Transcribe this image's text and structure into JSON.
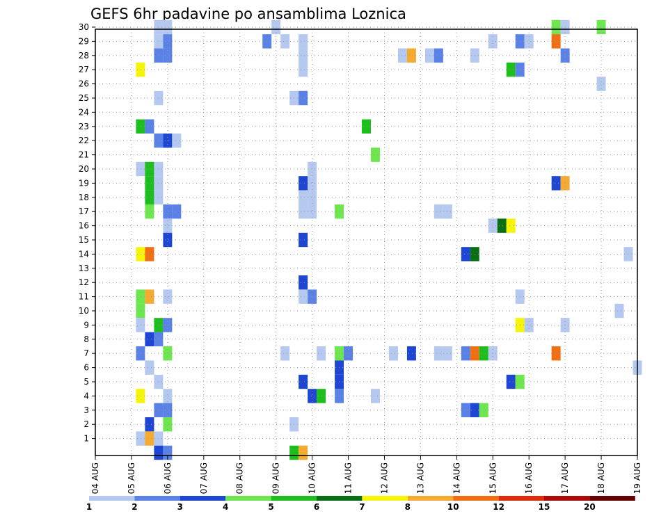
{
  "chart_data": {
    "type": "heatmap",
    "title": "GEFS 6hr padavine po ansamblima Loznica",
    "xlabel": "",
    "ylabel": "",
    "x_tick_labels": [
      "04 AUG",
      "05 AUG",
      "06 AUG",
      "07 AUG",
      "08 AUG",
      "09 AUG",
      "10 AUG",
      "11 AUG",
      "12 AUG",
      "13 AUG",
      "14 AUG",
      "15 AUG",
      "16 AUG",
      "17 AUG",
      "18 AUG",
      "19 AUG"
    ],
    "y_tick_labels": [
      "1",
      "2",
      "3",
      "4",
      "5",
      "6",
      "7",
      "8",
      "9",
      "10",
      "11",
      "12",
      "13",
      "14",
      "15",
      "16",
      "17",
      "18",
      "19",
      "20",
      "21",
      "22",
      "23",
      "24",
      "25",
      "26",
      "27",
      "28",
      "29",
      "30"
    ],
    "x_axis": "forecast time, 6-hour steps from 04 AUG 00Z (4 steps per day)",
    "y_axis": "ensemble member",
    "xlim_steps": [
      0,
      60
    ],
    "ylim_members": [
      0,
      30
    ],
    "grid": true,
    "color_bins": [
      {
        "from": 1,
        "to": 2,
        "color": "#b4c8f0"
      },
      {
        "from": 2,
        "to": 3,
        "color": "#5a82e6"
      },
      {
        "from": 3,
        "to": 4,
        "color": "#1e46d2"
      },
      {
        "from": 4,
        "to": 5,
        "color": "#6ee650"
      },
      {
        "from": 5,
        "to": 6,
        "color": "#1ebe1e"
      },
      {
        "from": 6,
        "to": 7,
        "color": "#0a6e14"
      },
      {
        "from": 7,
        "to": 8,
        "color": "#f5f50a"
      },
      {
        "from": 8,
        "to": 10,
        "color": "#f5aa32"
      },
      {
        "from": 10,
        "to": 12,
        "color": "#f06e14"
      },
      {
        "from": 12,
        "to": 15,
        "color": "#dc2d0a"
      },
      {
        "from": 15,
        "to": 20,
        "color": "#aa0a0a"
      },
      {
        "from": 20,
        "to": null,
        "color": "#640000"
      }
    ],
    "legend_labels": [
      "1",
      "2",
      "3",
      "4",
      "5",
      "6",
      "7",
      "8",
      "10",
      "12",
      "15",
      "20"
    ],
    "cells": [
      {
        "step": 7,
        "member": 30,
        "value": 1.5
      },
      {
        "step": 8,
        "member": 30,
        "value": 1.5
      },
      {
        "step": 20,
        "member": 30,
        "value": 1.5
      },
      {
        "step": 51,
        "member": 30,
        "value": 4.5
      },
      {
        "step": 52,
        "member": 30,
        "value": 1.5
      },
      {
        "step": 56,
        "member": 30,
        "value": 4.5
      },
      {
        "step": 7,
        "member": 29,
        "value": 1.5
      },
      {
        "step": 8,
        "member": 29,
        "value": 2.5
      },
      {
        "step": 19,
        "member": 29,
        "value": 2.5
      },
      {
        "step": 21,
        "member": 29,
        "value": 1.5
      },
      {
        "step": 23,
        "member": 29,
        "value": 1.5
      },
      {
        "step": 44,
        "member": 29,
        "value": 1.5
      },
      {
        "step": 47,
        "member": 29,
        "value": 2.5
      },
      {
        "step": 48,
        "member": 29,
        "value": 1.5
      },
      {
        "step": 51,
        "member": 29,
        "value": 11
      },
      {
        "step": 7,
        "member": 28,
        "value": 2.5
      },
      {
        "step": 8,
        "member": 28,
        "value": 2.5
      },
      {
        "step": 23,
        "member": 28,
        "value": 1.5
      },
      {
        "step": 34,
        "member": 28,
        "value": 1.5
      },
      {
        "step": 35,
        "member": 28,
        "value": 9
      },
      {
        "step": 37,
        "member": 28,
        "value": 1.5
      },
      {
        "step": 38,
        "member": 28,
        "value": 2.5
      },
      {
        "step": 42,
        "member": 28,
        "value": 1.5
      },
      {
        "step": 52,
        "member": 28,
        "value": 2.5
      },
      {
        "step": 5,
        "member": 27,
        "value": 7.5
      },
      {
        "step": 23,
        "member": 27,
        "value": 1.5
      },
      {
        "step": 46,
        "member": 27,
        "value": 5.5
      },
      {
        "step": 47,
        "member": 27,
        "value": 2.5
      },
      {
        "step": 56,
        "member": 26,
        "value": 1.5
      },
      {
        "step": 7,
        "member": 25,
        "value": 1.5
      },
      {
        "step": 22,
        "member": 25,
        "value": 1.5
      },
      {
        "step": 23,
        "member": 25,
        "value": 2.5
      },
      {
        "step": 5,
        "member": 23,
        "value": 5.5
      },
      {
        "step": 6,
        "member": 23,
        "value": 2.5
      },
      {
        "step": 30,
        "member": 23,
        "value": 5.5
      },
      {
        "step": 7,
        "member": 22,
        "value": 2.5
      },
      {
        "step": 8,
        "member": 22,
        "value": 3.5
      },
      {
        "step": 9,
        "member": 22,
        "value": 1.5
      },
      {
        "step": 31,
        "member": 21,
        "value": 4.5
      },
      {
        "step": 5,
        "member": 20,
        "value": 1.5
      },
      {
        "step": 6,
        "member": 20,
        "value": 5.5
      },
      {
        "step": 7,
        "member": 20,
        "value": 1.5
      },
      {
        "step": 24,
        "member": 20,
        "value": 1.5
      },
      {
        "step": 6,
        "member": 19,
        "value": 5.5
      },
      {
        "step": 7,
        "member": 19,
        "value": 1.5
      },
      {
        "step": 23,
        "member": 19,
        "value": 3.5
      },
      {
        "step": 24,
        "member": 19,
        "value": 1.5
      },
      {
        "step": 51,
        "member": 19,
        "value": 3.5
      },
      {
        "step": 52,
        "member": 19,
        "value": 9
      },
      {
        "step": 6,
        "member": 18,
        "value": 5.5
      },
      {
        "step": 7,
        "member": 18,
        "value": 1.5
      },
      {
        "step": 23,
        "member": 18,
        "value": 1.5
      },
      {
        "step": 24,
        "member": 18,
        "value": 1.5
      },
      {
        "step": 6,
        "member": 17,
        "value": 4.5
      },
      {
        "step": 8,
        "member": 17,
        "value": 2.5
      },
      {
        "step": 9,
        "member": 17,
        "value": 2.5
      },
      {
        "step": 23,
        "member": 17,
        "value": 1.5
      },
      {
        "step": 24,
        "member": 17,
        "value": 1.5
      },
      {
        "step": 27,
        "member": 17,
        "value": 4.5
      },
      {
        "step": 38,
        "member": 17,
        "value": 1.5
      },
      {
        "step": 39,
        "member": 17,
        "value": 1.5
      },
      {
        "step": 8,
        "member": 16,
        "value": 1.5
      },
      {
        "step": 44,
        "member": 16,
        "value": 1.5
      },
      {
        "step": 45,
        "member": 16,
        "value": 6.5
      },
      {
        "step": 46,
        "member": 16,
        "value": 7.5
      },
      {
        "step": 8,
        "member": 15,
        "value": 3.5
      },
      {
        "step": 23,
        "member": 15,
        "value": 3.5
      },
      {
        "step": 5,
        "member": 14,
        "value": 7.5
      },
      {
        "step": 6,
        "member": 14,
        "value": 11
      },
      {
        "step": 41,
        "member": 14,
        "value": 3.5
      },
      {
        "step": 42,
        "member": 14,
        "value": 6.5
      },
      {
        "step": 59,
        "member": 14,
        "value": 1.5
      },
      {
        "step": 23,
        "member": 12,
        "value": 3.5
      },
      {
        "step": 5,
        "member": 11,
        "value": 4.5
      },
      {
        "step": 6,
        "member": 11,
        "value": 9
      },
      {
        "step": 8,
        "member": 11,
        "value": 1.5
      },
      {
        "step": 23,
        "member": 11,
        "value": 1.5
      },
      {
        "step": 24,
        "member": 11,
        "value": 2.5
      },
      {
        "step": 47,
        "member": 11,
        "value": 1.5
      },
      {
        "step": 5,
        "member": 10,
        "value": 4.5
      },
      {
        "step": 58,
        "member": 10,
        "value": 1.5
      },
      {
        "step": 5,
        "member": 9,
        "value": 1.5
      },
      {
        "step": 7,
        "member": 9,
        "value": 5.5
      },
      {
        "step": 8,
        "member": 9,
        "value": 2.5
      },
      {
        "step": 47,
        "member": 9,
        "value": 7.5
      },
      {
        "step": 48,
        "member": 9,
        "value": 1.5
      },
      {
        "step": 52,
        "member": 9,
        "value": 1.5
      },
      {
        "step": 6,
        "member": 8,
        "value": 3.5
      },
      {
        "step": 7,
        "member": 8,
        "value": 2.5
      },
      {
        "step": 5,
        "member": 7,
        "value": 2.5
      },
      {
        "step": 8,
        "member": 7,
        "value": 4.5
      },
      {
        "step": 21,
        "member": 7,
        "value": 1.5
      },
      {
        "step": 25,
        "member": 7,
        "value": 1.5
      },
      {
        "step": 27,
        "member": 7,
        "value": 4.5
      },
      {
        "step": 28,
        "member": 7,
        "value": 2.5
      },
      {
        "step": 33,
        "member": 7,
        "value": 1.5
      },
      {
        "step": 35,
        "member": 7,
        "value": 3.5
      },
      {
        "step": 38,
        "member": 7,
        "value": 1.5
      },
      {
        "step": 39,
        "member": 7,
        "value": 1.5
      },
      {
        "step": 41,
        "member": 7,
        "value": 2.5
      },
      {
        "step": 42,
        "member": 7,
        "value": 11
      },
      {
        "step": 43,
        "member": 7,
        "value": 5.5
      },
      {
        "step": 44,
        "member": 7,
        "value": 1.5
      },
      {
        "step": 51,
        "member": 7,
        "value": 11
      },
      {
        "step": 6,
        "member": 6,
        "value": 1.5
      },
      {
        "step": 27,
        "member": 6,
        "value": 3.5
      },
      {
        "step": 60,
        "member": 6,
        "value": 1.5
      },
      {
        "step": 7,
        "member": 5,
        "value": 1.5
      },
      {
        "step": 23,
        "member": 5,
        "value": 3.5
      },
      {
        "step": 27,
        "member": 5,
        "value": 3.5
      },
      {
        "step": 46,
        "member": 5,
        "value": 3.5
      },
      {
        "step": 47,
        "member": 5,
        "value": 4.5
      },
      {
        "step": 5,
        "member": 4,
        "value": 7.5
      },
      {
        "step": 8,
        "member": 4,
        "value": 1.5
      },
      {
        "step": 24,
        "member": 4,
        "value": 3.5
      },
      {
        "step": 25,
        "member": 4,
        "value": 5.5
      },
      {
        "step": 27,
        "member": 4,
        "value": 2.5
      },
      {
        "step": 31,
        "member": 4,
        "value": 1.5
      },
      {
        "step": 7,
        "member": 3,
        "value": 2.5
      },
      {
        "step": 8,
        "member": 3,
        "value": 2.5
      },
      {
        "step": 41,
        "member": 3,
        "value": 2.5
      },
      {
        "step": 42,
        "member": 3,
        "value": 3.5
      },
      {
        "step": 43,
        "member": 3,
        "value": 4.5
      },
      {
        "step": 6,
        "member": 2,
        "value": 3.5
      },
      {
        "step": 8,
        "member": 2,
        "value": 4.5
      },
      {
        "step": 22,
        "member": 2,
        "value": 1.5
      },
      {
        "step": 5,
        "member": 1,
        "value": 1.5
      },
      {
        "step": 6,
        "member": 1,
        "value": 9
      },
      {
        "step": 7,
        "member": 1,
        "value": 1.5
      },
      {
        "step": 7,
        "member": 0,
        "value": 3.5
      },
      {
        "step": 8,
        "member": 0,
        "value": 2.5
      },
      {
        "step": 22,
        "member": 0,
        "value": 5.5
      },
      {
        "step": 23,
        "member": 0,
        "value": 9
      }
    ]
  }
}
